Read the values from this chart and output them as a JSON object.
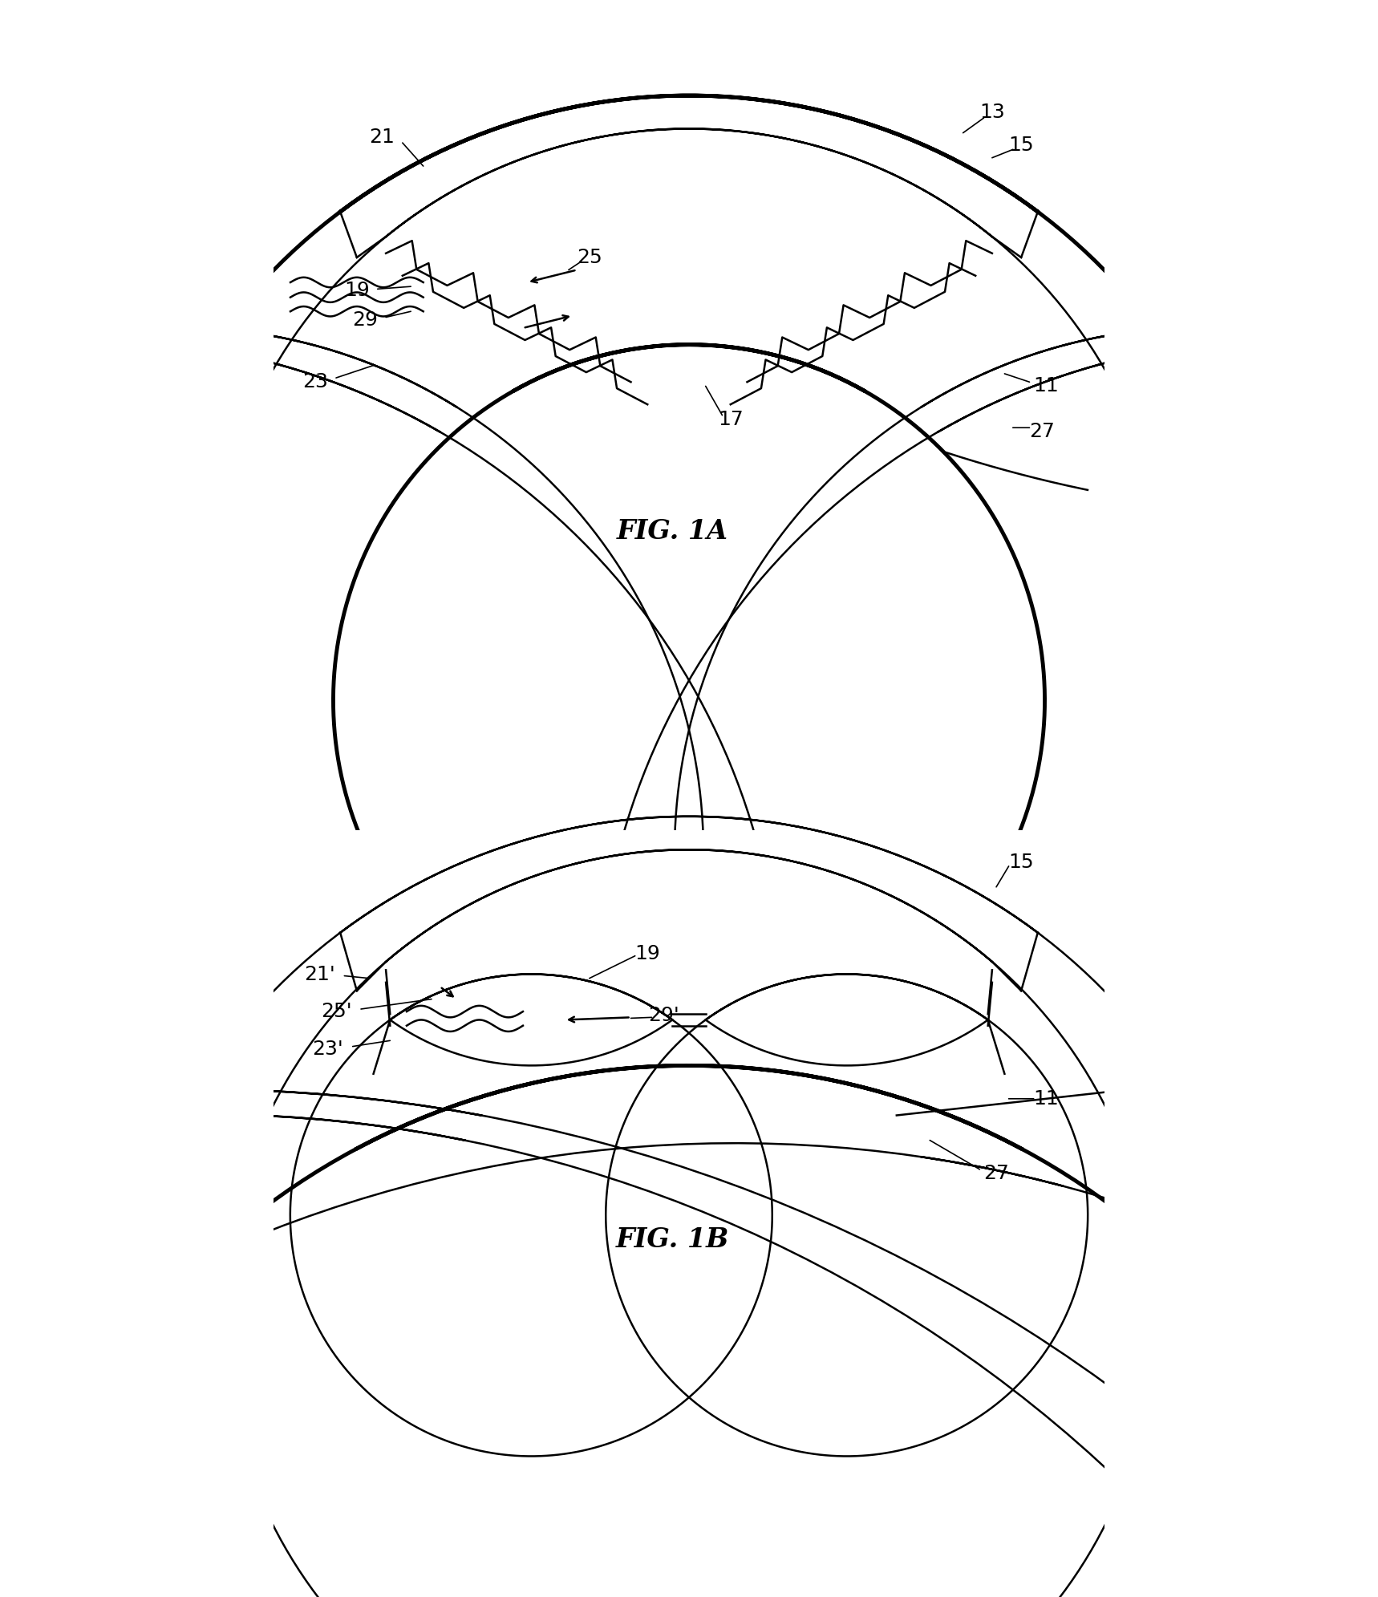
{
  "background_color": "#ffffff",
  "line_color": "#000000",
  "lw_thin": 1.8,
  "lw_thick": 3.5,
  "fig_width": 17.18,
  "fig_height": 19.91,
  "label_size": 18,
  "fig1a_title": "FIG. 1A",
  "fig1b_title": "FIG. 1B"
}
